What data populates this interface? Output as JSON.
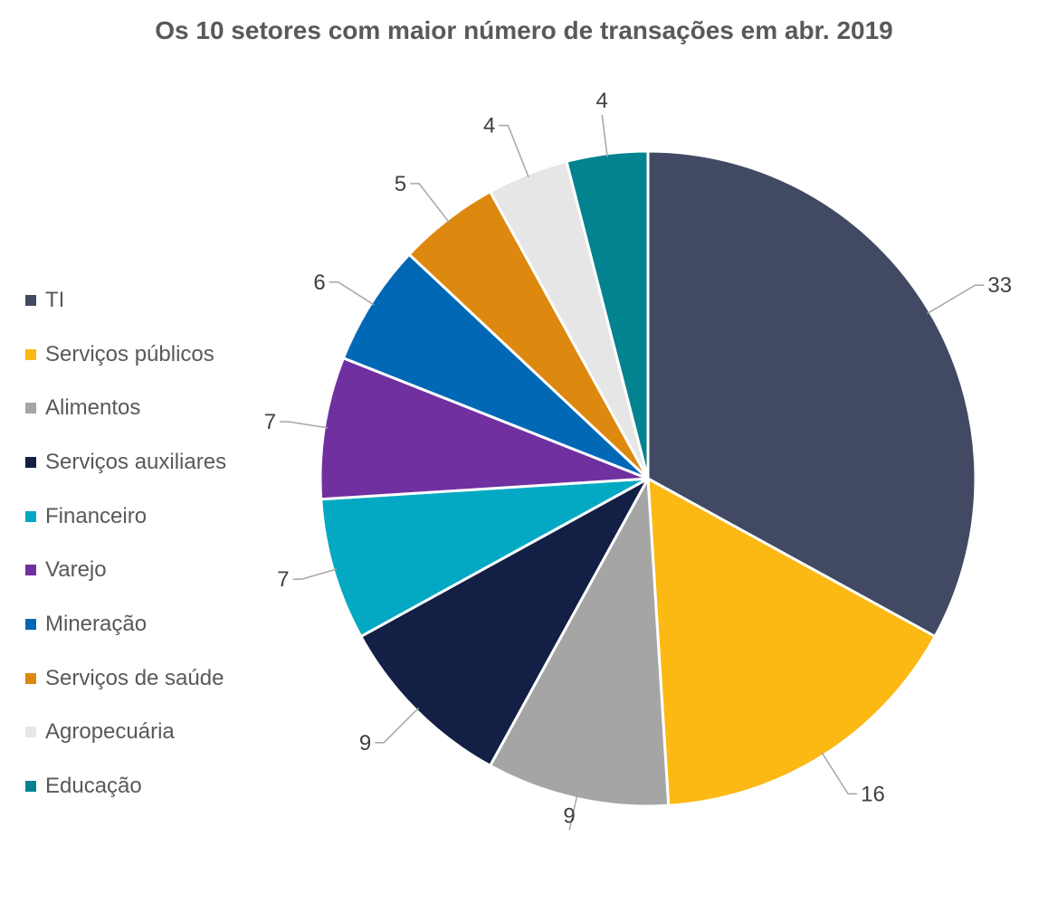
{
  "chart_data": {
    "type": "pie",
    "title": "Os 10 setores com maior número de transações em abr. 2019",
    "legend_position": "left",
    "slices": [
      {
        "label": "TI",
        "value": 33,
        "color": "#414A62"
      },
      {
        "label": "Serviços públicos",
        "value": 16,
        "color": "#FCB813"
      },
      {
        "label": "Alimentos",
        "value": 9,
        "color": "#A5A5A5"
      },
      {
        "label": "Serviços auxiliares",
        "value": 9,
        "color": "#131F44"
      },
      {
        "label": "Financeiro",
        "value": 7,
        "color": "#03A9C2"
      },
      {
        "label": "Varejo",
        "value": 7,
        "color": "#7030A0"
      },
      {
        "label": "Mineração",
        "value": 6,
        "color": "#0068B5"
      },
      {
        "label": "Serviços de saúde",
        "value": 5,
        "color": "#DD880E"
      },
      {
        "label": "Agropecuária",
        "value": 4,
        "color": "#E6E6E6"
      },
      {
        "label": "Educação",
        "value": 4,
        "color": "#038290"
      }
    ]
  }
}
